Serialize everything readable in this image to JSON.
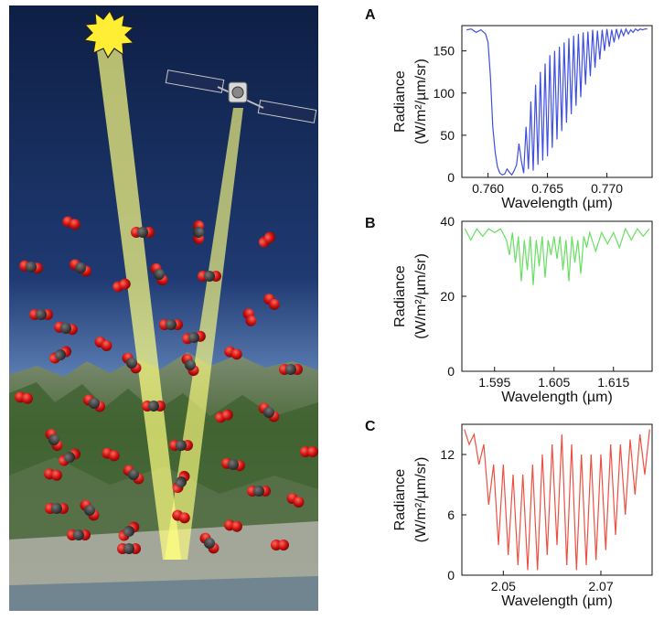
{
  "illustration": {
    "sky_top": "#0e1f45",
    "sky_bottom": "#5d80b5",
    "beam_color": "#ffff80",
    "sun_color": "#ffee33",
    "molecule_color": "#cc1111",
    "carbon_color": "#333333"
  },
  "chart_data": [
    {
      "type": "line",
      "panel": "A",
      "color": "#3f4fe0",
      "xlabel": "Wavelength (µm)",
      "ylabel": "Radiance",
      "ylabel_units": "(W/m²/µm/sr)",
      "xlim": [
        0.7578,
        0.7738
      ],
      "ylim": [
        0,
        180
      ],
      "xticks": [
        0.76,
        0.765,
        0.77
      ],
      "xtick_labels": [
        "0.760",
        "0.765",
        "0.770"
      ],
      "yticks": [
        0,
        50,
        100,
        150
      ],
      "ytick_labels": [
        "0",
        "50",
        "100",
        "150"
      ],
      "series": [
        {
          "x": [
            0.7582,
            0.7586,
            0.759,
            0.7594,
            0.7598,
            0.76,
            0.7602,
            0.7604,
            0.7606,
            0.7608,
            0.761,
            0.7612,
            0.7614,
            0.7616,
            0.7618,
            0.762,
            0.7622,
            0.7624,
            0.7626,
            0.7628,
            0.763,
            0.7632,
            0.7634,
            0.7636,
            0.7638,
            0.764,
            0.7642,
            0.7644,
            0.7646,
            0.7648,
            0.765,
            0.7652,
            0.7654,
            0.7656,
            0.7658,
            0.766,
            0.7662,
            0.7664,
            0.7666,
            0.7668,
            0.767,
            0.7672,
            0.7674,
            0.7676,
            0.7678,
            0.768,
            0.7682,
            0.7684,
            0.7686,
            0.7688,
            0.769,
            0.7692,
            0.7694,
            0.7696,
            0.7698,
            0.77,
            0.7702,
            0.7704,
            0.7706,
            0.7708,
            0.771,
            0.7712,
            0.7714,
            0.7716,
            0.7718,
            0.772,
            0.7722,
            0.7724,
            0.7726,
            0.7728,
            0.773,
            0.7732,
            0.7734
          ],
          "y": [
            175,
            176,
            172,
            175,
            170,
            160,
            120,
            60,
            30,
            12,
            5,
            3,
            4,
            10,
            6,
            3,
            8,
            15,
            40,
            20,
            5,
            60,
            10,
            90,
            8,
            110,
            15,
            125,
            20,
            135,
            25,
            145,
            35,
            150,
            45,
            155,
            55,
            160,
            65,
            165,
            75,
            168,
            85,
            170,
            95,
            172,
            110,
            173,
            120,
            175,
            130,
            174,
            140,
            175,
            150,
            176,
            155,
            175,
            160,
            176,
            165,
            175,
            168,
            176,
            170,
            175,
            172,
            176,
            174,
            176,
            175,
            176,
            176
          ]
        }
      ]
    },
    {
      "type": "line",
      "panel": "B",
      "color": "#66e060",
      "xlabel": "Wavelength (µm)",
      "ylabel": "Radiance",
      "ylabel_units": "(W/m²/µm/sr)",
      "xlim": [
        1.5895,
        1.6215
      ],
      "ylim": [
        0,
        40
      ],
      "xticks": [
        1.595,
        1.605,
        1.615
      ],
      "xtick_labels": [
        "1.595",
        "1.605",
        "1.615"
      ],
      "yticks": [
        0,
        20,
        40
      ],
      "ytick_labels": [
        "0",
        "20",
        "40"
      ],
      "series": [
        {
          "x": [
            1.59,
            1.591,
            1.592,
            1.593,
            1.594,
            1.595,
            1.596,
            1.597,
            1.5975,
            1.598,
            1.5985,
            1.599,
            1.5995,
            1.6,
            1.6005,
            1.601,
            1.6015,
            1.602,
            1.6025,
            1.603,
            1.6035,
            1.604,
            1.6045,
            1.605,
            1.6055,
            1.606,
            1.6065,
            1.607,
            1.6075,
            1.608,
            1.6085,
            1.609,
            1.6095,
            1.61,
            1.6105,
            1.611,
            1.612,
            1.613,
            1.614,
            1.615,
            1.616,
            1.617,
            1.618,
            1.619,
            1.62,
            1.621
          ],
          "y": [
            38,
            35,
            38,
            36,
            38,
            37,
            38,
            35,
            31,
            37,
            29,
            36,
            24,
            35,
            27,
            36,
            23,
            35,
            28,
            36,
            25,
            35,
            31,
            36,
            30,
            36,
            27,
            35,
            24,
            36,
            29,
            35,
            26,
            36,
            33,
            37,
            32,
            37,
            34,
            37,
            33,
            38,
            35,
            38,
            36,
            38
          ]
        }
      ]
    },
    {
      "type": "line",
      "panel": "C",
      "color": "#ee5040",
      "xlabel": "Wavelength (µm)",
      "ylabel": "Radiance",
      "ylabel_units": "(W/m²/µm/sr)",
      "xlim": [
        2.0415,
        2.0805
      ],
      "ylim": [
        0,
        15
      ],
      "xticks": [
        2.05,
        2.07
      ],
      "xtick_labels": [
        "2.05",
        "2.07"
      ],
      "yticks": [
        0,
        6,
        12
      ],
      "ytick_labels": [
        "0",
        "6",
        "12"
      ],
      "series": [
        {
          "x": [
            2.042,
            2.043,
            2.044,
            2.045,
            2.046,
            2.047,
            2.048,
            2.049,
            2.05,
            2.051,
            2.052,
            2.053,
            2.054,
            2.055,
            2.056,
            2.057,
            2.058,
            2.059,
            2.06,
            2.061,
            2.062,
            2.063,
            2.064,
            2.065,
            2.066,
            2.067,
            2.068,
            2.069,
            2.07,
            2.071,
            2.072,
            2.073,
            2.074,
            2.075,
            2.076,
            2.077,
            2.078,
            2.079,
            2.08
          ],
          "y": [
            14.5,
            13,
            14,
            11,
            13,
            7,
            11,
            3,
            11,
            2,
            10,
            1,
            10,
            0.5,
            11,
            0.5,
            12,
            2,
            13,
            3,
            14,
            1,
            13,
            0.5,
            12,
            1,
            12,
            1.5,
            12,
            2.5,
            13,
            4,
            13,
            6,
            13.5,
            8,
            14,
            10,
            14.5
          ]
        }
      ]
    }
  ]
}
